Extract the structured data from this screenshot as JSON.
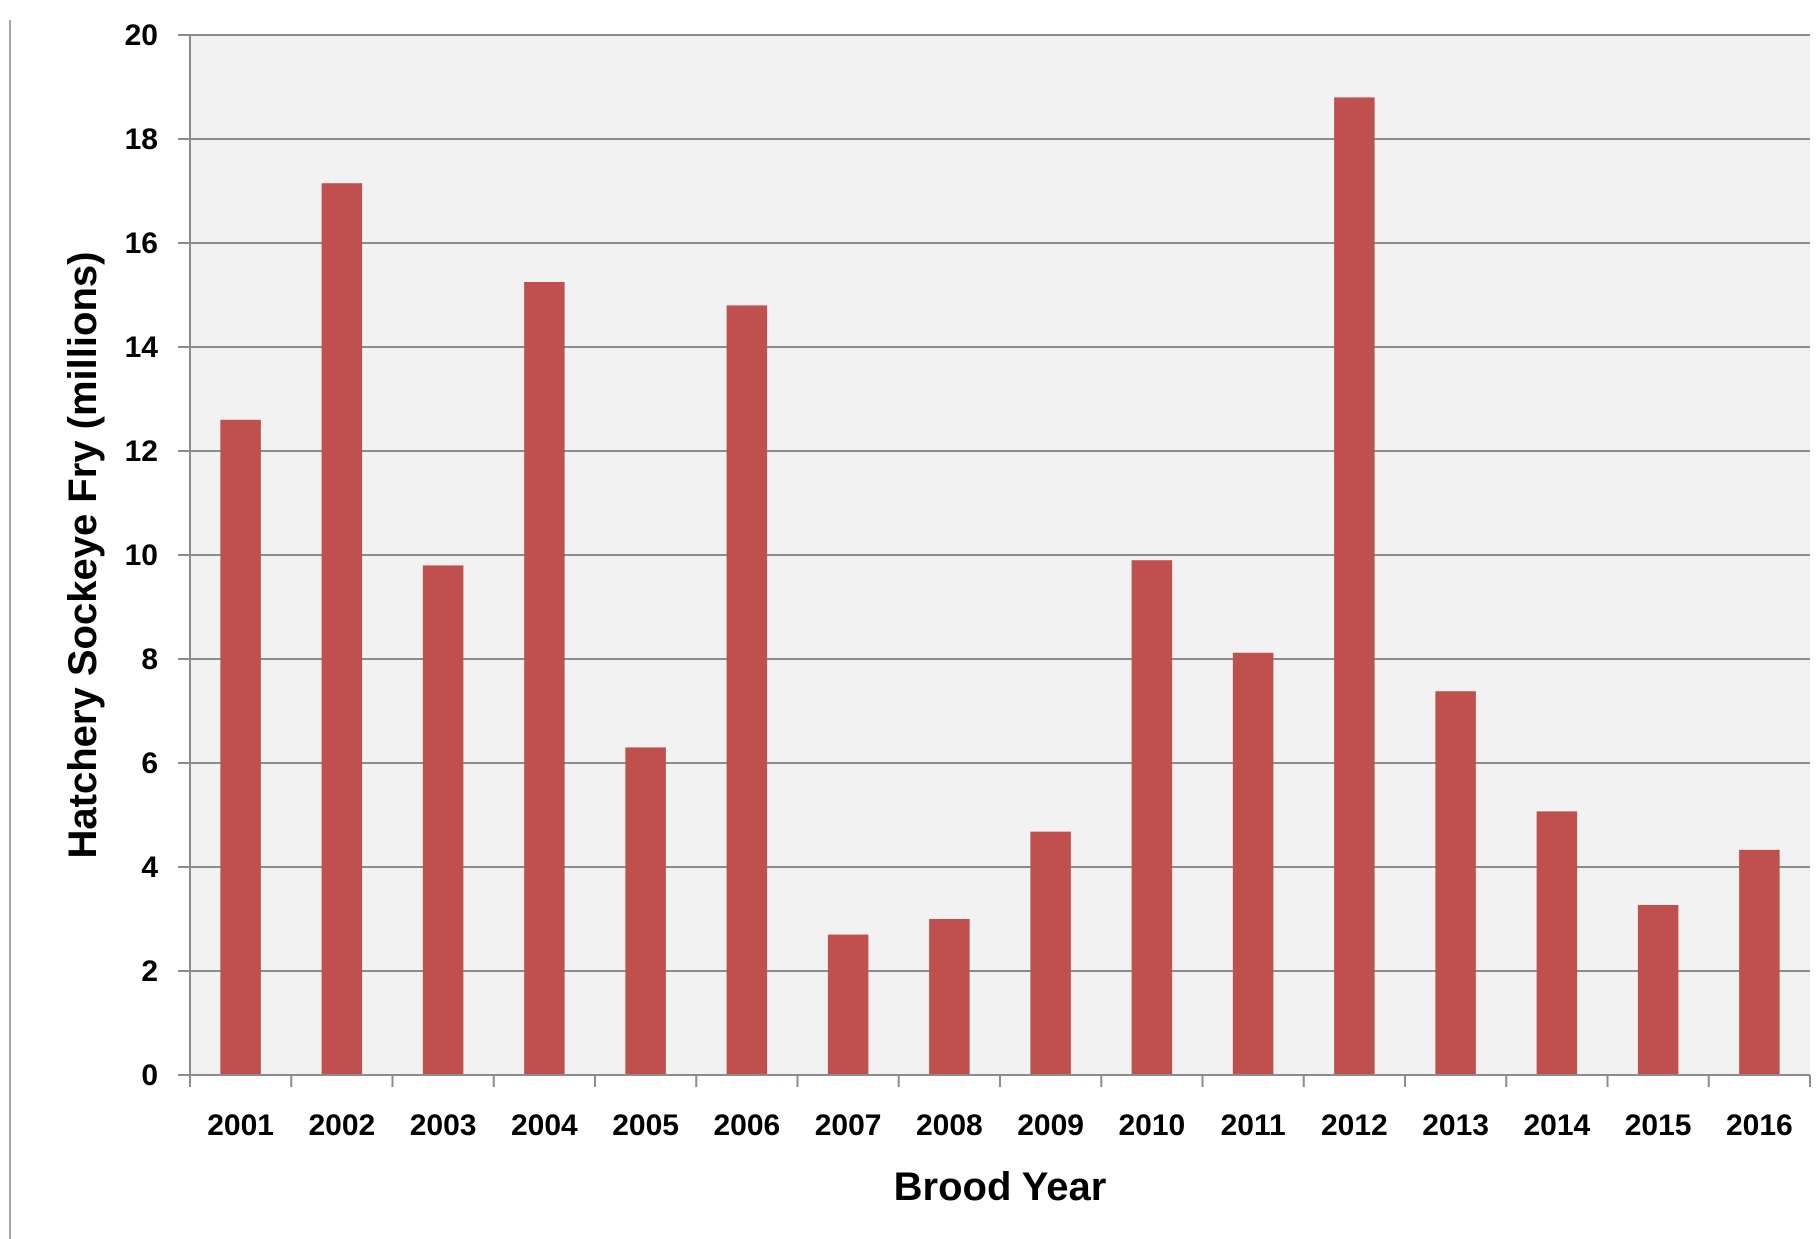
{
  "chart_data": {
    "type": "bar",
    "categories": [
      "2001",
      "2002",
      "2003",
      "2004",
      "2005",
      "2006",
      "2007",
      "2008",
      "2009",
      "2010",
      "2011",
      "2012",
      "2013",
      "2014",
      "2015",
      "2016"
    ],
    "values": [
      12.6,
      17.15,
      9.8,
      15.25,
      6.3,
      14.8,
      2.7,
      3.0,
      4.68,
      9.9,
      8.12,
      18.8,
      7.38,
      5.07,
      3.27,
      4.33
    ],
    "title": "",
    "xlabel": "Brood Year",
    "ylabel": "Hatchery Sockeye Fry (millions)",
    "ylim": [
      0,
      20
    ],
    "yticks": [
      "0",
      "2",
      "4",
      "6",
      "8",
      "10",
      "12",
      "14",
      "16",
      "18",
      "20"
    ],
    "grid": true,
    "legend": "none",
    "colors": {
      "bar": "#c0504d",
      "plot_background": "#f2f2f2",
      "gridline": "#8c8c8c",
      "axis": "#8c8c8c"
    }
  }
}
